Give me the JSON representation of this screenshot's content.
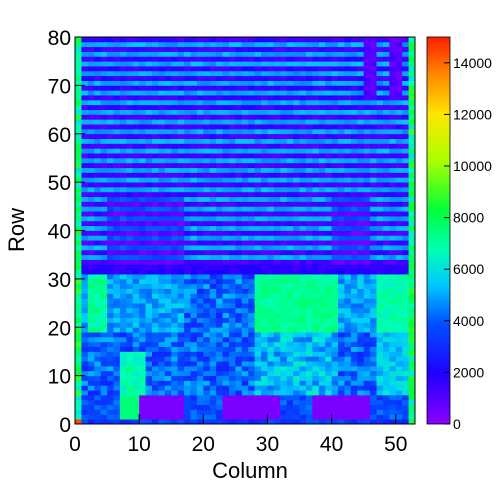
{
  "chart_data": {
    "type": "heatmap",
    "title": "",
    "xlabel": "Column",
    "ylabel": "Row",
    "xlim": [
      0,
      53
    ],
    "ylim": [
      0,
      80
    ],
    "x_ticks": [
      0,
      10,
      20,
      30,
      40,
      50
    ],
    "y_ticks": [
      0,
      10,
      20,
      30,
      40,
      50,
      60,
      70,
      80
    ],
    "zlim": [
      0,
      15000
    ],
    "z_ticks": [
      0,
      2000,
      4000,
      6000,
      8000,
      10000,
      12000,
      14000
    ],
    "colorscale": "rainbow (violet at 0, red at 15000)",
    "n_columns": 53,
    "n_rows": 80,
    "row_bands": [
      {
        "rows": [
          0,
          1
        ],
        "value": 2000
      },
      {
        "rows": [
          1,
          9
        ],
        "value": 2500
      },
      {
        "rows": [
          9,
          19
        ],
        "value": 4500
      },
      {
        "rows": [
          19,
          31
        ],
        "value": 5200
      },
      {
        "rows": [
          31,
          33
        ],
        "value": 1500
      },
      {
        "rows": [
          33,
          51
        ],
        "value": 1800
      },
      {
        "rows": [
          51,
          80
        ],
        "value": 1800
      }
    ],
    "column_bands": [
      {
        "columns": [
          9,
          17
        ],
        "note": "low-value block at rows 1-5",
        "value": 300
      },
      {
        "columns": [
          24,
          33
        ],
        "note": "low-value block at rows 1-5",
        "value": 300
      },
      {
        "columns": [
          37,
          46
        ],
        "note": "low-value block at rows 1-5",
        "value": 300
      },
      {
        "columns": [
          29,
          41
        ],
        "note": "high plateau rows 19-30",
        "value": 7000
      },
      {
        "columns": [
          47,
          52
        ],
        "note": "high plateau rows 19-30",
        "value": 6800
      },
      {
        "columns": [
          7,
          10
        ],
        "note": "bright strip rows 1-14",
        "value": 7000
      }
    ],
    "alternating_stripe_values": [
      1200,
      5000
    ]
  }
}
